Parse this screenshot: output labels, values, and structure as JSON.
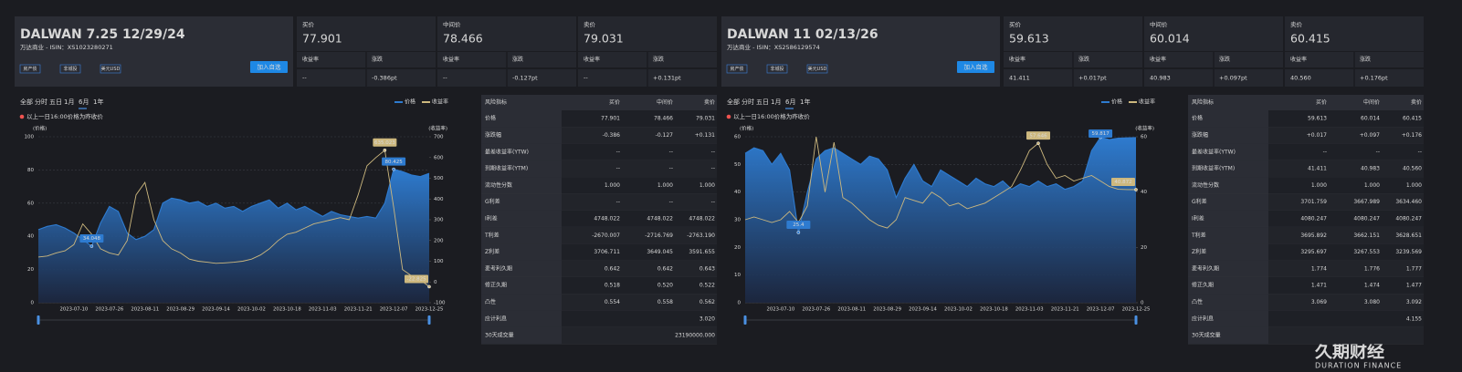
{
  "panels": [
    {
      "header": {
        "title": "DALWAN 7.25 12/29/24",
        "subtitle": "万达商业 - ISIN：XS1023280271",
        "tags": [
          "房产债",
          "非城投",
          "美元USD"
        ],
        "button": "加入自选"
      },
      "quotes": [
        {
          "label": "买价",
          "price": "77.901",
          "color": "#3dbb5a",
          "yield_label": "收益率",
          "yield": "--",
          "change_label": "涨跌",
          "change": "-0.386pt"
        },
        {
          "label": "中间价",
          "price": "78.466",
          "color": "#3dbb5a",
          "yield_label": "收益率",
          "yield": "--",
          "change_label": "涨跌",
          "change": "-0.127pt"
        },
        {
          "label": "卖价",
          "price": "79.031",
          "color": "#ef5350",
          "yield_label": "收益率",
          "yield": "--",
          "change_label": "涨跌",
          "change": "+0.131pt"
        }
      ],
      "table": {
        "header": [
          "风险指标",
          "买价",
          "中间价",
          "卖价"
        ],
        "rows": [
          [
            "价格",
            "77.901",
            "78.466",
            "79.031"
          ],
          [
            "涨跌幅",
            "-0.386",
            "-0.127",
            "+0.131"
          ],
          [
            "最差收益率(YTW)",
            "--",
            "--",
            "--"
          ],
          [
            "到期收益率(YTM)",
            "--",
            "--",
            "--"
          ],
          [
            "流动性分数",
            "1.000",
            "1.000",
            "1.000"
          ],
          [
            "G利差",
            "--",
            "--",
            "--"
          ],
          [
            "I利差",
            "4748.022",
            "4748.022",
            "4748.022"
          ],
          [
            "T利差",
            "-2670.007",
            "-2716.769",
            "-2763.190"
          ],
          [
            "Z利差",
            "3706.711",
            "3649.045",
            "3591.655"
          ],
          [
            "麦考利久期",
            "0.642",
            "0.642",
            "0.643"
          ],
          [
            "修正久期",
            "0.518",
            "0.520",
            "0.522"
          ],
          [
            "凸性",
            "0.554",
            "0.558",
            "0.562"
          ],
          [
            "应计利息",
            null,
            null,
            "3.020"
          ],
          [
            "30天成交量",
            null,
            null,
            "23190000.000"
          ]
        ]
      }
    },
    {
      "header": {
        "title": "DALWAN 11 02/13/26",
        "subtitle": "万达商业 - ISIN：XS2586129574",
        "tags": [
          "房产债",
          "非城投",
          "美元USD"
        ],
        "button": "加入自选"
      },
      "quotes": [
        {
          "label": "买价",
          "price": "59.613",
          "color": "#ef5350",
          "yield_label": "收益率",
          "yield": "41.411",
          "change_label": "涨跌",
          "change": "+0.017pt"
        },
        {
          "label": "中间价",
          "price": "60.014",
          "color": "#ef5350",
          "yield_label": "收益率",
          "yield": "40.983",
          "change_label": "涨跌",
          "change": "+0.097pt"
        },
        {
          "label": "卖价",
          "price": "60.415",
          "color": "#ef5350",
          "yield_label": "收益率",
          "yield": "40.560",
          "change_label": "涨跌",
          "change": "+0.176pt"
        }
      ],
      "table": {
        "header": [
          "风险指标",
          "买价",
          "中间价",
          "卖价"
        ],
        "rows": [
          [
            "价格",
            "59.613",
            "60.014",
            "60.415"
          ],
          [
            "涨跌幅",
            "+0.017",
            "+0.097",
            "+0.176"
          ],
          [
            "最差收益率(YTW)",
            "--",
            "--",
            "--"
          ],
          [
            "到期收益率(YTM)",
            "41.411",
            "40.983",
            "40.560"
          ],
          [
            "流动性分数",
            "1.000",
            "1.000",
            "1.000"
          ],
          [
            "G利差",
            "3701.759",
            "3667.989",
            "3634.460"
          ],
          [
            "I利差",
            "4080.247",
            "4080.247",
            "4080.247"
          ],
          [
            "T利差",
            "3695.892",
            "3662.151",
            "3628.651"
          ],
          [
            "Z利差",
            "3295.697",
            "3267.553",
            "3239.569"
          ],
          [
            "麦考利久期",
            "1.774",
            "1.776",
            "1.777"
          ],
          [
            "修正久期",
            "1.471",
            "1.474",
            "1.477"
          ],
          [
            "凸性",
            "3.069",
            "3.080",
            "3.092"
          ],
          [
            "应计利息",
            null,
            null,
            "4.155"
          ],
          [
            "30天成交量",
            null,
            null,
            null
          ]
        ]
      }
    }
  ],
  "chart_data": [
    {
      "type": "line",
      "tabs": [
        "全部",
        "分时",
        "五日",
        "1月",
        "6月",
        "1年"
      ],
      "active_tab": 4,
      "note": "以上一日16:00价格为昨收价",
      "y_label": "(价格)",
      "y2_label": "(收益率)",
      "legend": "top-right",
      "grid": true,
      "categories": [
        null,
        null,
        null,
        null,
        "2023-07-10",
        null,
        null,
        null,
        "2023-07-26",
        null,
        null,
        null,
        "2023-08-11",
        null,
        null,
        null,
        "2023-08-29",
        null,
        null,
        null,
        "2023-09-14",
        null,
        null,
        null,
        "2023-10-02",
        null,
        null,
        null,
        "2023-10-18",
        null,
        null,
        null,
        "2023-11-03",
        null,
        null,
        null,
        "2023-11-21",
        null,
        null,
        null,
        "2023-12-07",
        null,
        null,
        null,
        "2023-12-25"
      ],
      "ylim": [
        0,
        100
      ],
      "yticks": [
        0,
        20,
        40,
        60,
        80,
        100
      ],
      "y2lim": [
        -100,
        700
      ],
      "y2ticks": [
        -100,
        0,
        100,
        200,
        300,
        400,
        500,
        600,
        700
      ],
      "series": [
        {
          "name": "价格",
          "color": "#2e7bd0",
          "area": true,
          "labeled": [
            6,
            40
          ],
          "values": [
            44,
            46,
            47,
            45,
            42,
            38,
            34.048,
            48,
            58,
            55,
            42,
            38,
            40,
            44,
            60,
            63,
            62,
            60,
            61,
            58,
            60,
            57,
            58,
            55,
            58,
            60,
            62,
            57,
            60,
            56,
            58,
            55,
            52,
            55,
            53,
            52,
            51,
            52,
            51,
            60,
            80.425,
            79,
            77,
            76,
            77.901
          ]
        },
        {
          "name": "收益率",
          "color": "#cdb87e",
          "axis": "y2",
          "labeled": [
            39,
            44
          ],
          "values": [
            120,
            125,
            140,
            150,
            180,
            280,
            230,
            160,
            140,
            130,
            200,
            420,
            480,
            300,
            200,
            160,
            140,
            110,
            100,
            95,
            90,
            92,
            95,
            100,
            110,
            130,
            160,
            200,
            230,
            240,
            260,
            280,
            290,
            300,
            310,
            300,
            420,
            560,
            600,
            635.023,
            360,
            60,
            30,
            10,
            -22.825
          ]
        }
      ]
    },
    {
      "type": "line",
      "tabs": [
        "全部",
        "分时",
        "五日",
        "1月",
        "6月",
        "1年"
      ],
      "active_tab": 4,
      "note": "以上一日16:00价格为昨收价",
      "y_label": "(价格)",
      "y2_label": "(收益率)",
      "legend": "top-right",
      "grid": true,
      "categories": [
        null,
        null,
        null,
        null,
        "2023-07-10",
        null,
        null,
        null,
        "2023-07-26",
        null,
        null,
        null,
        "2023-08-11",
        null,
        null,
        null,
        "2023-08-29",
        null,
        null,
        null,
        "2023-09-14",
        null,
        null,
        null,
        "2023-10-02",
        null,
        null,
        null,
        "2023-10-18",
        null,
        null,
        null,
        "2023-11-03",
        null,
        null,
        null,
        "2023-11-21",
        null,
        null,
        null,
        "2023-12-07",
        null,
        null,
        null,
        "2023-12-25"
      ],
      "ylim": [
        0,
        60
      ],
      "yticks": [
        0,
        10,
        20,
        30,
        40,
        50,
        60
      ],
      "y2lim": [
        0,
        60
      ],
      "y2ticks": [
        0,
        20,
        40,
        60
      ],
      "series": [
        {
          "name": "价格",
          "color": "#2e7bd0",
          "area": true,
          "labeled": [
            6,
            40
          ],
          "values": [
            54,
            56,
            55,
            50,
            54,
            48,
            25.4,
            40,
            52,
            55,
            56,
            54,
            52,
            50,
            53,
            52,
            48,
            38,
            45,
            50,
            44,
            42,
            48,
            46,
            44,
            42,
            45,
            43,
            42,
            44,
            41,
            43,
            42,
            44,
            42,
            43,
            41,
            42,
            44,
            55,
            59.817,
            59,
            59.5,
            59.613,
            59.7
          ]
        },
        {
          "name": "收益率",
          "color": "#cdb87e",
          "axis": "y2",
          "labeled": [
            33,
            44
          ],
          "values": [
            30,
            31,
            30,
            29,
            30,
            33,
            29,
            35,
            60,
            40,
            58,
            38,
            36,
            33,
            30,
            28,
            27,
            30,
            38,
            37,
            36,
            40,
            38,
            35,
            36,
            34,
            35,
            36,
            38,
            40,
            42,
            48,
            55,
            57.646,
            50,
            45,
            46,
            44,
            45,
            46,
            44,
            42,
            41,
            40.9,
            40.872
          ]
        }
      ]
    }
  ],
  "logo": {
    "name": "久期财经",
    "subtitle": "DURATION FINANCE"
  }
}
